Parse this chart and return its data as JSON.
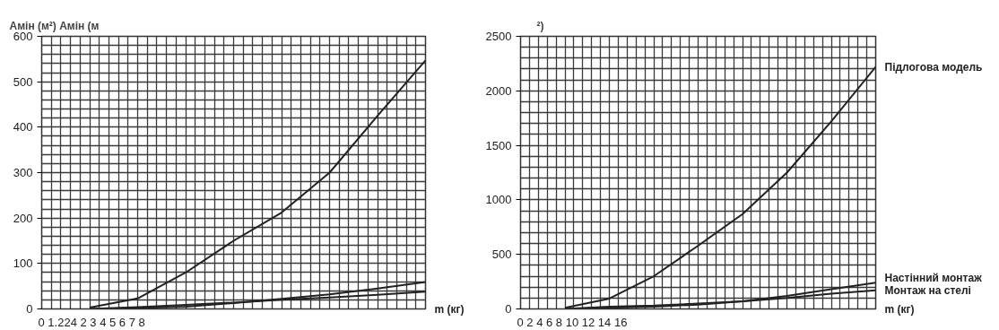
{
  "chart_data": [
    {
      "type": "line",
      "ylabel": "Амін (м²) Амін (м",
      "xlabel": "m (кг)",
      "annotations": [
        "0 1.224 2 3 4 5 6 7 8"
      ],
      "categories": [
        null,
        null,
        null,
        null,
        null,
        null,
        null,
        null,
        null
      ],
      "ylim": [
        0,
        600
      ],
      "yticks": [
        0,
        100,
        200,
        300,
        400,
        500,
        600
      ],
      "tick_labels": "y",
      "grid": true,
      "marker": "none",
      "line_style": "solid",
      "series": [
        {
          "color": "#222222",
          "values": [
            null,
            3,
            23,
            80,
            150,
            212,
            300,
            425,
            547
          ]
        },
        {
          "color": "#222222",
          "values": [
            null,
            0,
            2,
            5,
            13,
            22,
            32,
            45,
            59
          ]
        },
        {
          "color": "#222222",
          "values": [
            null,
            0,
            4,
            9,
            14,
            20,
            25,
            31,
            38
          ]
        }
      ]
    },
    {
      "type": "line",
      "ylabel": "²)",
      "xlabel": "m (кг)",
      "annotations": [
        "0 2 4 6 8 10 12 14 16"
      ],
      "categories": [
        null,
        null,
        null,
        null,
        null,
        null,
        null,
        null,
        null
      ],
      "ylim": [
        0,
        2500
      ],
      "yticks": [
        0,
        500,
        1000,
        1500,
        2000,
        2500
      ],
      "tick_labels": "y",
      "grid": true,
      "marker": "none",
      "line_style": "solid",
      "series": [
        {
          "name": "Підлогова модель",
          "color": "#222222",
          "values": [
            null,
            10,
            95,
            300,
            580,
            870,
            1250,
            1720,
            2220
          ]
        },
        {
          "name": "Настінний монтаж",
          "color": "#222222",
          "values": [
            null,
            0,
            10,
            20,
            40,
            70,
            120,
            180,
            240
          ]
        },
        {
          "name": "Монтаж на стелі",
          "color": "#222222",
          "values": [
            null,
            0,
            20,
            30,
            50,
            70,
            100,
            140,
            170
          ]
        }
      ]
    }
  ]
}
